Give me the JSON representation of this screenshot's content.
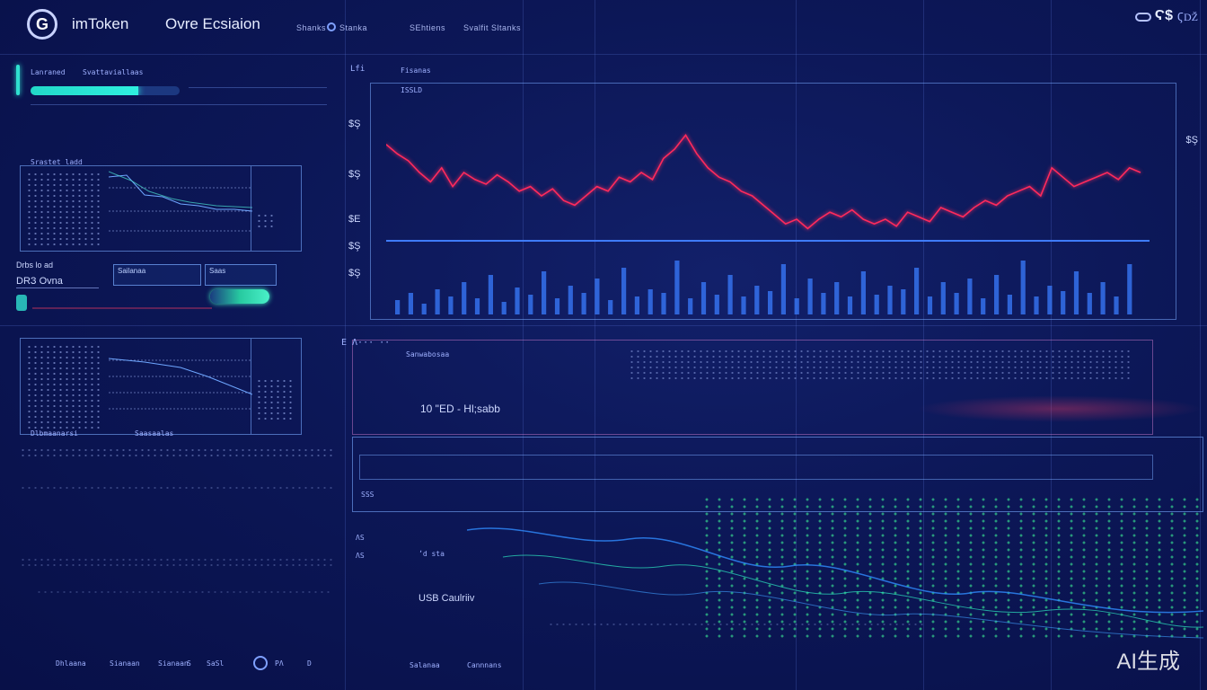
{
  "header": {
    "brand": "imToken",
    "section_title": "Ovre Ecsiaion",
    "nav_small": [
      "Shanks",
      "Stanka",
      "SEhtiens",
      "Svalfit Sltanks"
    ],
    "top_right": "Ϛ$",
    "top_right_sub": "ϚǄ"
  },
  "left_top_panel": {
    "title": "Lanraned",
    "subtitle": "Svattaviallaas",
    "progress": 0.72
  },
  "left_mid_panel": {
    "title": "Srastet ladd",
    "label_1": "Drbs lo ad",
    "label_2": "DRЗ Ovna",
    "btn_1": "Sailanaa",
    "btn_2": "Saas"
  },
  "left_bottom_panel": {
    "footer_1": "Dlbmaanarsi",
    "footer_2": "Saasaalas"
  },
  "chart_panel": {
    "header_1": "Fisanas",
    "header_2": "ISSLD",
    "header_3": "Lfi",
    "y_labels": [
      "$Ş",
      "$Ş",
      "$E",
      "$Ş",
      "$Ş"
    ],
    "right_label": "$Ş"
  },
  "chart_data": {
    "type": "line",
    "series": [
      {
        "values": [
          62,
          58,
          55,
          50,
          46,
          52,
          44,
          50,
          47,
          45,
          49,
          46,
          42,
          44,
          40,
          43,
          38,
          36,
          40,
          44,
          42,
          48,
          46,
          50,
          47,
          56,
          60,
          66,
          58,
          52,
          48,
          46,
          42,
          40,
          36,
          32,
          28,
          30,
          26,
          30,
          33,
          31,
          34,
          30,
          28,
          30,
          27,
          33,
          31,
          29,
          35,
          33,
          31,
          35,
          38,
          36,
          40,
          42,
          44,
          40,
          52,
          48,
          44,
          46,
          48,
          50,
          47,
          52,
          50
        ]
      }
    ],
    "volume": [
      8,
      12,
      6,
      14,
      10,
      18,
      9,
      22,
      7,
      15,
      11,
      24,
      9,
      16,
      12,
      20,
      8,
      26,
      10,
      14,
      12,
      30,
      9,
      18,
      11,
      22,
      10,
      16,
      13,
      28,
      9,
      20,
      12,
      18,
      10,
      24,
      11,
      16,
      14,
      26,
      10,
      18,
      12,
      20,
      9,
      22,
      11,
      30,
      10,
      16,
      13,
      24,
      12,
      18,
      10,
      28
    ]
  },
  "bottom_panel": {
    "header": "E Λ··· ··",
    "inner_label": "Sanwabosaa",
    "row_label": "10 \"ED - Hl;sabb",
    "lower_label": "ʼd sta",
    "side_label": "USB Caulriiv",
    "row_tiny": [
      "SSS",
      "ΛS",
      "ΛS"
    ],
    "footer": [
      "Dhlaana",
      "Sianaan",
      "Sianaan",
      "S",
      "SaSl",
      "PΛ",
      "D",
      "Salanaa",
      "Cannnans"
    ]
  },
  "watermark": "AI生成",
  "colors": {
    "background": "#0c1757",
    "line_red": "#ff2a5c",
    "accent_cyan": "#2fe0d0",
    "accent_green": "#3ff0a0",
    "grid": "#5a78dc"
  }
}
